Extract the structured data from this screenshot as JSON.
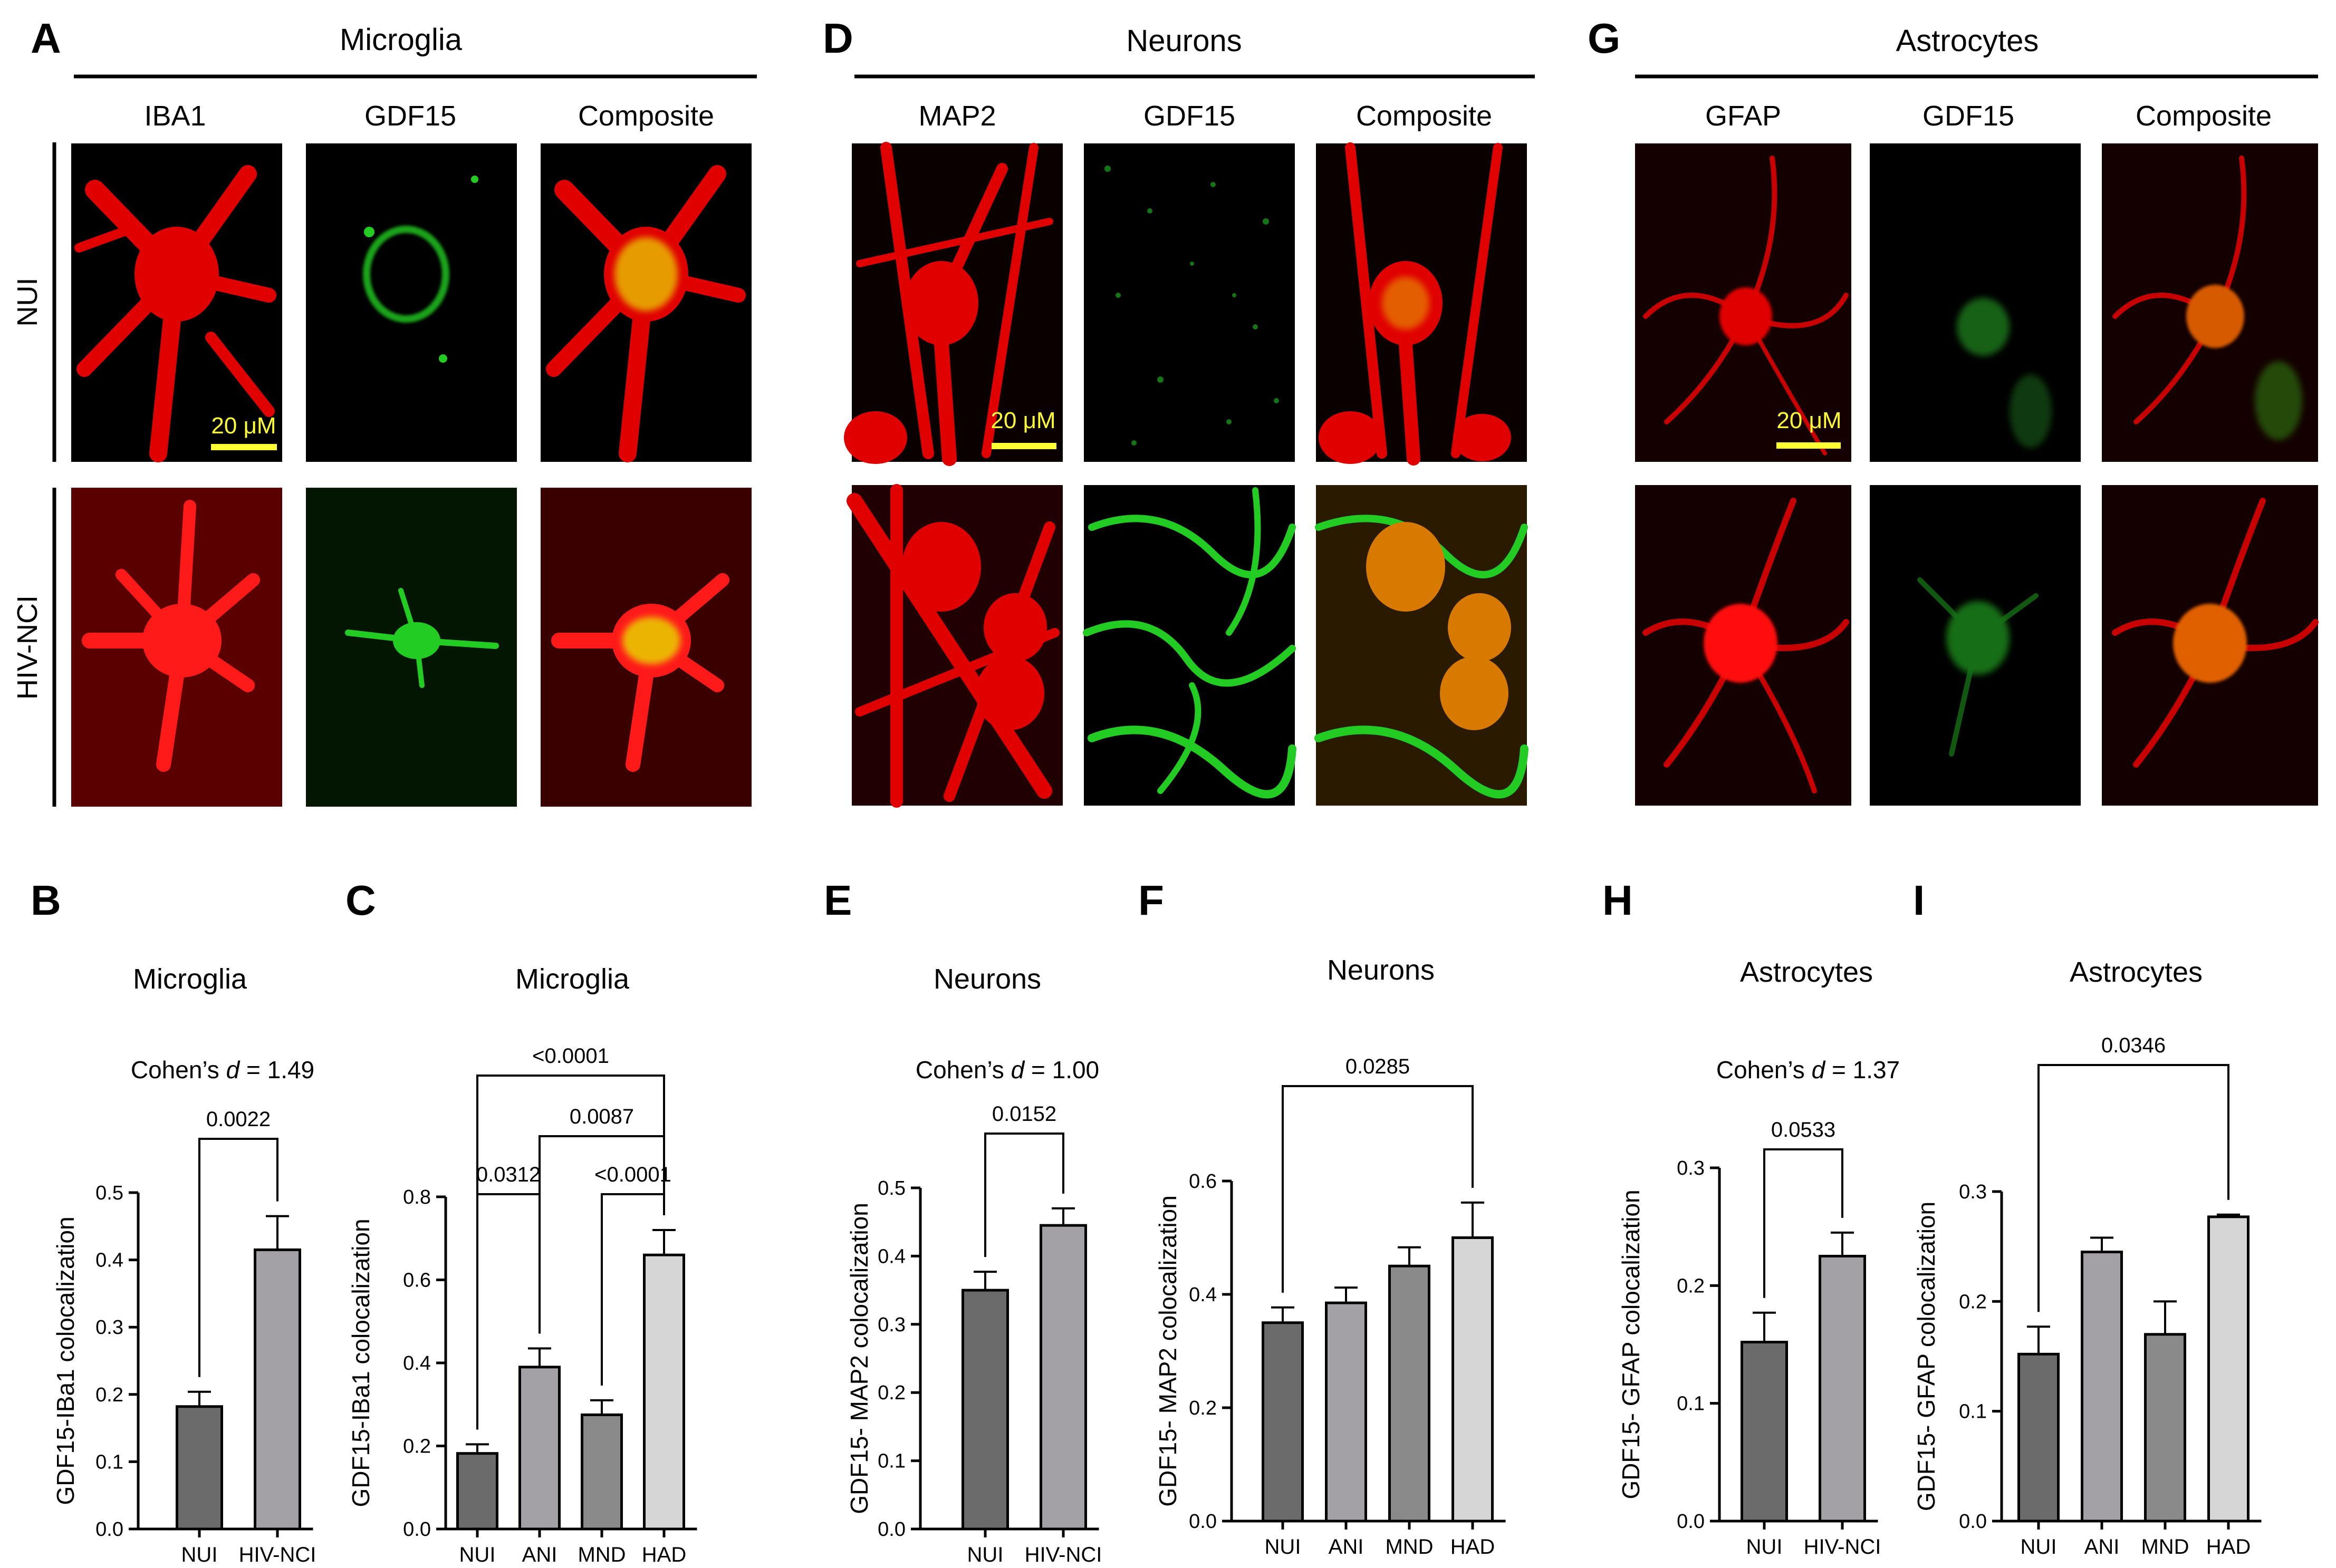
{
  "colors": {
    "red_channel": "#e00000",
    "green_channel": "#22cc22",
    "composite_yellow": "#e8d000",
    "scalebar": "#ffff33",
    "bar_dark": "#6b6b6b",
    "bar_mid1": "#a3a1a6",
    "bar_mid2": "#8a8a8a",
    "bar_light": "#d6d6d6"
  },
  "icon_panels": [
    {
      "letter": "A",
      "section": "Microglia",
      "columns": [
        "IBA1",
        "GDF15",
        "Composite"
      ],
      "rows": [
        "NUI",
        "HIV-NCI"
      ],
      "scalebar": "20 μM"
    },
    {
      "letter": "D",
      "section": "Neurons",
      "columns": [
        "MAP2",
        "GDF15",
        "Composite"
      ],
      "scalebar": "20 μM"
    },
    {
      "letter": "G",
      "section": "Astrocytes",
      "columns": [
        "GFAP",
        "GDF15",
        "Composite"
      ],
      "scalebar": "20 μM"
    }
  ],
  "chart_data": [
    {
      "panel": "B",
      "type": "bar",
      "title": "Microglia",
      "effect_prefix": "Cohen’s ",
      "effect_d": "d",
      "effect_value": " = 1.49",
      "ylabel": "GDF15-IBa1 colocalization",
      "ylim": [
        0,
        0.5
      ],
      "yticks": [
        "0.0",
        "0.1",
        "0.2",
        "0.3",
        "0.4",
        "0.5"
      ],
      "categories": [
        "NUI",
        "HIV-NCI"
      ],
      "values": [
        0.182,
        0.415
      ],
      "errors": [
        0.022,
        0.05
      ],
      "comparisons": [
        {
          "from": 0,
          "to": 1,
          "label": "0.0022"
        }
      ]
    },
    {
      "panel": "C",
      "type": "bar",
      "title": "Microglia",
      "ylabel": "GDF15-IBa1 colocalization",
      "ylim": [
        0,
        0.8
      ],
      "yticks": [
        "0.0",
        "0.2",
        "0.4",
        "0.6",
        "0.8"
      ],
      "categories": [
        "NUI",
        "ANI",
        "MND",
        "HAD"
      ],
      "values": [
        0.182,
        0.39,
        0.275,
        0.66
      ],
      "errors": [
        0.022,
        0.045,
        0.035,
        0.06
      ],
      "comparisons": [
        {
          "from": 0,
          "to": 3,
          "label": "<0.0001"
        },
        {
          "from": 1,
          "to": 3,
          "label": "0.0087"
        },
        {
          "from": 0,
          "to": 1,
          "label": "0.0312"
        },
        {
          "from": 2,
          "to": 3,
          "label": "<0.0001"
        }
      ]
    },
    {
      "panel": "E",
      "type": "bar",
      "title": "Neurons",
      "effect_prefix": "Cohen’s ",
      "effect_d": "d",
      "effect_value": " = 1.00",
      "ylabel": "GDF15- MAP2 colocalization",
      "ylim": [
        0,
        0.5
      ],
      "yticks": [
        "0.0",
        "0.1",
        "0.2",
        "0.3",
        "0.4",
        "0.5"
      ],
      "categories": [
        "NUI",
        "HIV-NCI"
      ],
      "values": [
        0.35,
        0.445
      ],
      "errors": [
        0.027,
        0.025
      ],
      "comparisons": [
        {
          "from": 0,
          "to": 1,
          "label": "0.0152"
        }
      ]
    },
    {
      "panel": "F",
      "type": "bar",
      "title": "Neurons",
      "ylabel": "GDF15- MAP2 colocalization",
      "ylim": [
        0,
        0.6
      ],
      "yticks": [
        "0.0",
        "0.2",
        "0.4",
        "0.6"
      ],
      "categories": [
        "NUI",
        "ANI",
        "MND",
        "HAD"
      ],
      "values": [
        0.35,
        0.385,
        0.45,
        0.5
      ],
      "errors": [
        0.027,
        0.027,
        0.033,
        0.062
      ],
      "comparisons": [
        {
          "from": 0,
          "to": 3,
          "label": "0.0285"
        }
      ]
    },
    {
      "panel": "H",
      "type": "bar",
      "title": "Astrocytes",
      "effect_prefix": "Cohen’s ",
      "effect_d": "d",
      "effect_value": " = 1.37",
      "ylabel": "GDF15- GFAP colocalization",
      "ylim": [
        0,
        0.3
      ],
      "yticks": [
        "0.0",
        "0.1",
        "0.2",
        "0.3"
      ],
      "categories": [
        "NUI",
        "HIV-NCI"
      ],
      "values": [
        0.152,
        0.225
      ],
      "errors": [
        0.025,
        0.02
      ],
      "comparisons": [
        {
          "from": 0,
          "to": 1,
          "label": "0.0533"
        }
      ]
    },
    {
      "panel": "I",
      "type": "bar",
      "title": "Astrocytes",
      "ylabel": "GDF15- GFAP colocalization",
      "ylim": [
        0,
        0.3
      ],
      "yticks": [
        "0.0",
        "0.1",
        "0.2",
        "0.3"
      ],
      "categories": [
        "NUI",
        "ANI",
        "MND",
        "HAD"
      ],
      "values": [
        0.152,
        0.245,
        0.17,
        0.277
      ],
      "errors": [
        0.025,
        0.013,
        0.03,
        0.002
      ],
      "comparisons": [
        {
          "from": 0,
          "to": 3,
          "label": "0.0346"
        }
      ]
    }
  ]
}
